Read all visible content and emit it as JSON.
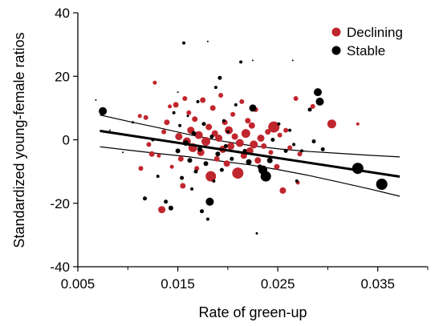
{
  "chart_data": {
    "type": "scatter",
    "xlabel": "Rate of green-up",
    "ylabel": "Standardized young-female ratios",
    "xlim": [
      0.005,
      0.04
    ],
    "ylim": [
      -40,
      40
    ],
    "x_ticks": [
      0.005,
      0.015,
      0.025,
      0.035
    ],
    "x_tick_labels": [
      "0.005",
      "0.015",
      "0.025",
      "0.035"
    ],
    "y_ticks": [
      -40,
      -20,
      0,
      20,
      40
    ],
    "y_tick_labels": [
      "-40",
      "-20",
      "0",
      "20",
      "40"
    ],
    "grid": false,
    "legend_position": "top-right",
    "colors": {
      "declining": "#c0262d",
      "stable": "#000000"
    },
    "series": [
      {
        "name": "Declining",
        "color": "#c0262d",
        "points": [
          {
            "x": 0.0112,
            "y": 7.5,
            "s": 2.5
          },
          {
            "x": 0.0118,
            "y": 7.0,
            "s": 3.0
          },
          {
            "x": 0.0121,
            "y": -1.5,
            "s": 3.0
          },
          {
            "x": 0.0124,
            "y": -4.5,
            "s": 3.5
          },
          {
            "x": 0.0113,
            "y": -9.0,
            "s": 3.0
          },
          {
            "x": 0.0127,
            "y": 18.0,
            "s": 2.5
          },
          {
            "x": 0.0131,
            "y": -5.0,
            "s": 2.5
          },
          {
            "x": 0.0134,
            "y": -22.0,
            "s": 4.5
          },
          {
            "x": 0.0136,
            "y": 2.5,
            "s": 3.0
          },
          {
            "x": 0.0139,
            "y": 5.5,
            "s": 3.5
          },
          {
            "x": 0.0142,
            "y": 10.5,
            "s": 2.5
          },
          {
            "x": 0.0144,
            "y": -8.5,
            "s": 2.5
          },
          {
            "x": 0.0148,
            "y": 11.0,
            "s": 3.5
          },
          {
            "x": 0.0151,
            "y": 1.0,
            "s": 4.5
          },
          {
            "x": 0.0153,
            "y": -6.0,
            "s": 3.5
          },
          {
            "x": 0.0155,
            "y": -14.5,
            "s": 3.5
          },
          {
            "x": 0.0157,
            "y": 13.0,
            "s": 3.0
          },
          {
            "x": 0.0159,
            "y": -0.5,
            "s": 5.0
          },
          {
            "x": 0.0161,
            "y": 8.5,
            "s": 3.0
          },
          {
            "x": 0.0163,
            "y": 3.0,
            "s": 4.5
          },
          {
            "x": 0.0165,
            "y": -2.5,
            "s": 5.5
          },
          {
            "x": 0.0167,
            "y": 6.5,
            "s": 3.5
          },
          {
            "x": 0.0169,
            "y": -9.0,
            "s": 3.0
          },
          {
            "x": 0.0171,
            "y": 1.5,
            "s": 5.0
          },
          {
            "x": 0.0173,
            "y": -4.0,
            "s": 4.5
          },
          {
            "x": 0.0175,
            "y": 12.5,
            "s": 3.5
          },
          {
            "x": 0.0178,
            "y": -0.5,
            "s": 5.5
          },
          {
            "x": 0.0181,
            "y": 4.0,
            "s": 4.0
          },
          {
            "x": 0.0183,
            "y": -11.5,
            "s": 6.5
          },
          {
            "x": 0.0185,
            "y": 10.0,
            "s": 3.5
          },
          {
            "x": 0.0187,
            "y": 2.0,
            "s": 4.0
          },
          {
            "x": 0.0189,
            "y": -6.0,
            "s": 3.5
          },
          {
            "x": 0.0191,
            "y": 0.5,
            "s": 4.5
          },
          {
            "x": 0.0193,
            "y": 14.0,
            "s": 3.0
          },
          {
            "x": 0.0195,
            "y": -3.0,
            "s": 4.5
          },
          {
            "x": 0.0197,
            "y": 5.5,
            "s": 3.5
          },
          {
            "x": 0.0199,
            "y": -7.5,
            "s": 4.0
          },
          {
            "x": 0.0201,
            "y": 3.0,
            "s": 5.0
          },
          {
            "x": 0.0203,
            "y": -2.0,
            "s": 4.5
          },
          {
            "x": 0.0205,
            "y": 8.0,
            "s": 3.0
          },
          {
            "x": 0.0207,
            "y": 1.0,
            "s": 4.0
          },
          {
            "x": 0.021,
            "y": -10.5,
            "s": 7.0
          },
          {
            "x": 0.0212,
            "y": -1.0,
            "s": 5.0
          },
          {
            "x": 0.0214,
            "y": 12.0,
            "s": 3.0
          },
          {
            "x": 0.0216,
            "y": -5.0,
            "s": 4.0
          },
          {
            "x": 0.0218,
            "y": 2.0,
            "s": 5.5
          },
          {
            "x": 0.022,
            "y": 6.0,
            "s": 3.5
          },
          {
            "x": 0.0222,
            "y": -3.5,
            "s": 4.5
          },
          {
            "x": 0.0224,
            "y": 4.5,
            "s": 4.0
          },
          {
            "x": 0.0226,
            "y": -1.5,
            "s": 5.0
          },
          {
            "x": 0.0228,
            "y": 9.5,
            "s": 3.0
          },
          {
            "x": 0.023,
            "y": -6.5,
            "s": 4.0
          },
          {
            "x": 0.0233,
            "y": 0.5,
            "s": 4.5
          },
          {
            "x": 0.0236,
            "y": -2.0,
            "s": 3.5
          },
          {
            "x": 0.024,
            "y": 2.5,
            "s": 3.5
          },
          {
            "x": 0.0243,
            "y": -4.0,
            "s": 3.0
          },
          {
            "x": 0.0246,
            "y": 4.0,
            "s": 7.0
          },
          {
            "x": 0.0249,
            "y": -8.5,
            "s": 3.5
          },
          {
            "x": 0.0252,
            "y": 1.5,
            "s": 3.0
          },
          {
            "x": 0.0255,
            "y": -16.0,
            "s": 4.0
          },
          {
            "x": 0.0258,
            "y": 3.0,
            "s": 3.0
          },
          {
            "x": 0.0262,
            "y": -2.5,
            "s": 3.0
          },
          {
            "x": 0.0268,
            "y": 13.0,
            "s": 3.0
          },
          {
            "x": 0.0272,
            "y": -4.5,
            "s": 3.0
          },
          {
            "x": 0.0285,
            "y": 10.5,
            "s": 3.0
          },
          {
            "x": 0.0304,
            "y": 5.0,
            "s": 5.5
          },
          {
            "x": 0.033,
            "y": 5.0,
            "s": 2.0
          },
          {
            "x": 0.027,
            "y": -13.5,
            "s": 2.5
          }
        ]
      },
      {
        "name": "Stable",
        "color": "#000000",
        "points": [
          {
            "x": 0.0075,
            "y": 9.0,
            "s": 5.0
          },
          {
            "x": 0.0068,
            "y": 12.5,
            "s": 1.0
          },
          {
            "x": 0.0082,
            "y": 3.0,
            "s": 1.0
          },
          {
            "x": 0.0095,
            "y": -4.0,
            "s": 1.0
          },
          {
            "x": 0.0105,
            "y": 5.5,
            "s": 1.5
          },
          {
            "x": 0.0117,
            "y": -18.5,
            "s": 2.5
          },
          {
            "x": 0.0125,
            "y": 0.0,
            "s": 2.0
          },
          {
            "x": 0.013,
            "y": -11.5,
            "s": 2.0
          },
          {
            "x": 0.0138,
            "y": -19.5,
            "s": 2.5
          },
          {
            "x": 0.0143,
            "y": -21.5,
            "s": 3.0
          },
          {
            "x": 0.0146,
            "y": 8.5,
            "s": 2.0
          },
          {
            "x": 0.015,
            "y": -3.5,
            "s": 3.0
          },
          {
            "x": 0.0152,
            "y": 4.5,
            "s": 2.0
          },
          {
            "x": 0.0154,
            "y": -12.0,
            "s": 2.5
          },
          {
            "x": 0.0156,
            "y": 30.5,
            "s": 2.0
          },
          {
            "x": 0.0158,
            "y": -1.0,
            "s": 3.5
          },
          {
            "x": 0.016,
            "y": 7.5,
            "s": 1.5
          },
          {
            "x": 0.0162,
            "y": -6.5,
            "s": 3.0
          },
          {
            "x": 0.0164,
            "y": -15.5,
            "s": 2.0
          },
          {
            "x": 0.0166,
            "y": 2.0,
            "s": 3.0
          },
          {
            "x": 0.0168,
            "y": -10.0,
            "s": 2.5
          },
          {
            "x": 0.017,
            "y": 12.0,
            "s": 2.0
          },
          {
            "x": 0.0172,
            "y": -3.0,
            "s": 3.0
          },
          {
            "x": 0.0174,
            "y": -22.5,
            "s": 2.5
          },
          {
            "x": 0.0176,
            "y": 5.0,
            "s": 2.5
          },
          {
            "x": 0.0178,
            "y": -7.5,
            "s": 3.0
          },
          {
            "x": 0.018,
            "y": -25.0,
            "s": 2.0
          },
          {
            "x": 0.0182,
            "y": -19.5,
            "s": 5.0
          },
          {
            "x": 0.0184,
            "y": 1.0,
            "s": 2.5
          },
          {
            "x": 0.0186,
            "y": -13.0,
            "s": 2.0
          },
          {
            "x": 0.0188,
            "y": 16.5,
            "s": 2.0
          },
          {
            "x": 0.019,
            "y": -4.5,
            "s": 3.0
          },
          {
            "x": 0.0192,
            "y": 19.5,
            "s": 2.5
          },
          {
            "x": 0.0194,
            "y": -9.5,
            "s": 2.5
          },
          {
            "x": 0.0196,
            "y": 6.0,
            "s": 2.0
          },
          {
            "x": 0.0198,
            "y": -2.0,
            "s": 2.5
          },
          {
            "x": 0.02,
            "y": 2.5,
            "s": 2.0
          },
          {
            "x": 0.0204,
            "y": -6.0,
            "s": 2.5
          },
          {
            "x": 0.0208,
            "y": 11.0,
            "s": 2.0
          },
          {
            "x": 0.0213,
            "y": 24.5,
            "s": 2.0
          },
          {
            "x": 0.0217,
            "y": -3.5,
            "s": 2.5
          },
          {
            "x": 0.0221,
            "y": -7.0,
            "s": 3.5
          },
          {
            "x": 0.0225,
            "y": 10.0,
            "s": 4.5
          },
          {
            "x": 0.0229,
            "y": -29.5,
            "s": 1.5
          },
          {
            "x": 0.0232,
            "y": -8.5,
            "s": 3.0
          },
          {
            "x": 0.0235,
            "y": -9.5,
            "s": 5.5
          },
          {
            "x": 0.0238,
            "y": -11.5,
            "s": 6.5
          },
          {
            "x": 0.0242,
            "y": -6.5,
            "s": 3.5
          },
          {
            "x": 0.0245,
            "y": 0.0,
            "s": 2.5
          },
          {
            "x": 0.0251,
            "y": 5.0,
            "s": 2.0
          },
          {
            "x": 0.0258,
            "y": -3.5,
            "s": 2.5
          },
          {
            "x": 0.0262,
            "y": 3.0,
            "s": 2.0
          },
          {
            "x": 0.0266,
            "y": -1.5,
            "s": 2.0
          },
          {
            "x": 0.0269,
            "y": -13.0,
            "s": 2.0
          },
          {
            "x": 0.0274,
            "y": -3.5,
            "s": 2.0
          },
          {
            "x": 0.0282,
            "y": 9.5,
            "s": 2.5
          },
          {
            "x": 0.0286,
            "y": -0.5,
            "s": 2.5
          },
          {
            "x": 0.029,
            "y": 15.0,
            "s": 5.0
          },
          {
            "x": 0.0292,
            "y": 12.0,
            "s": 5.0
          },
          {
            "x": 0.0295,
            "y": -3.0,
            "s": 2.5
          },
          {
            "x": 0.033,
            "y": -9.0,
            "s": 7.0
          },
          {
            "x": 0.0354,
            "y": -14.0,
            "s": 7.0
          },
          {
            "x": 0.015,
            "y": 15.0,
            "s": 1.0
          },
          {
            "x": 0.018,
            "y": 31.0,
            "s": 1.0
          },
          {
            "x": 0.0225,
            "y": 25.0,
            "s": 1.0
          },
          {
            "x": 0.0265,
            "y": 25.0,
            "s": 1.0
          }
        ]
      }
    ],
    "regression": {
      "x": [
        0.0072,
        0.0372
      ],
      "y": [
        2.8,
        -11.6
      ]
    },
    "confidence_band": {
      "x": [
        0.0072,
        0.0102,
        0.0132,
        0.0162,
        0.0192,
        0.0222,
        0.0252,
        0.0282,
        0.0312,
        0.0342,
        0.0372
      ],
      "upper": [
        7.8,
        5.7,
        3.7,
        1.6,
        -0.3,
        -1.8,
        -2.9,
        -3.7,
        -4.3,
        -4.9,
        -5.4
      ],
      "lower": [
        -2.2,
        -3.3,
        -4.4,
        -5.4,
        -6.7,
        -7.9,
        -9.5,
        -11.3,
        -13.4,
        -15.5,
        -17.8
      ]
    }
  },
  "legend": {
    "declining_label": "Declining",
    "stable_label": "Stable"
  }
}
